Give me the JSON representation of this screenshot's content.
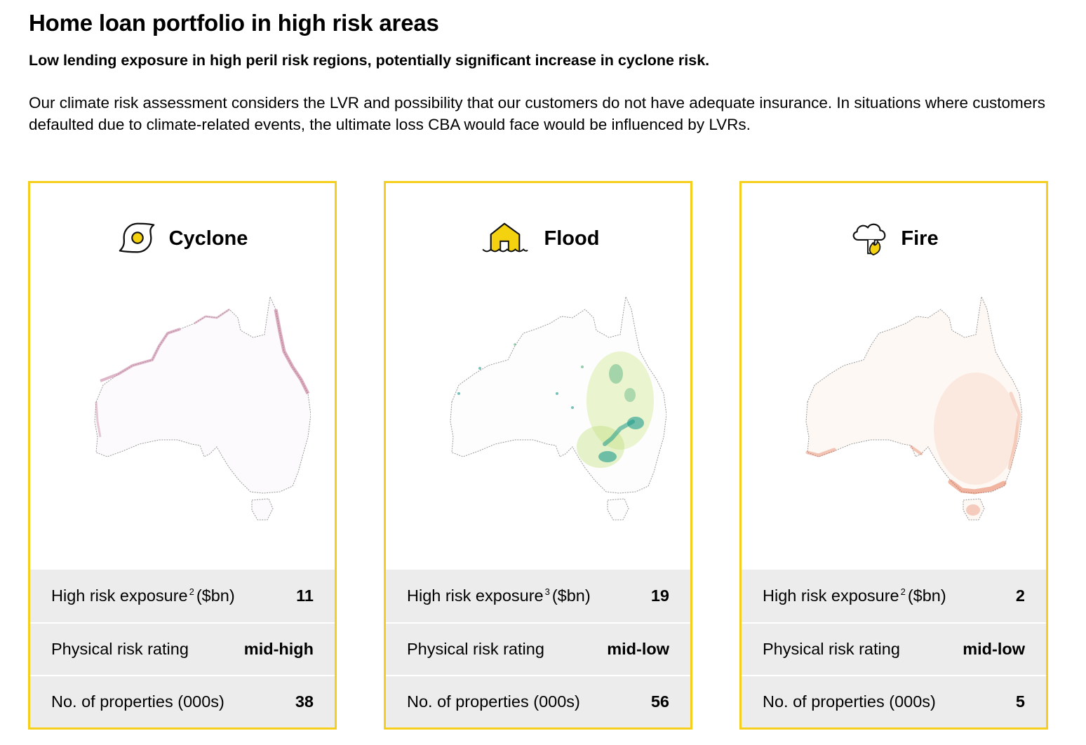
{
  "header": {
    "title": "Home loan portfolio in high risk areas",
    "subtitle": "Low lending exposure in high peril risk regions, potentially significant increase in cyclone risk.",
    "body": "Our climate risk assessment considers the LVR and possibility that our customers do not have adequate insurance. In situations where customers defaulted due to climate-related events, the ultimate loss CBA would face would be influenced by LVRs."
  },
  "colors": {
    "accent_border": "#f5cf1b",
    "stat_background": "#ececec"
  },
  "cards": [
    {
      "title": "Cyclone",
      "icon": "cyclone-icon",
      "stats": [
        {
          "label": "High risk exposure",
          "footnote": "2",
          "unit": "($bn)",
          "value": "11"
        },
        {
          "label": "Physical risk rating",
          "value": "mid-high"
        },
        {
          "label": "No. of properties (000s)",
          "value": "38"
        }
      ]
    },
    {
      "title": "Flood",
      "icon": "flood-house-icon",
      "stats": [
        {
          "label": "High risk exposure",
          "footnote": "3",
          "unit": "($bn)",
          "value": "19"
        },
        {
          "label": "Physical risk rating",
          "value": "mid-low"
        },
        {
          "label": "No. of properties (000s)",
          "value": "56"
        }
      ]
    },
    {
      "title": "Fire",
      "icon": "fire-cloud-icon",
      "stats": [
        {
          "label": "High risk exposure",
          "footnote": "2",
          "unit": "($bn)",
          "value": "2"
        },
        {
          "label": "Physical risk rating",
          "value": "mid-low"
        },
        {
          "label": "No. of properties (000s)",
          "value": "5"
        }
      ]
    }
  ]
}
